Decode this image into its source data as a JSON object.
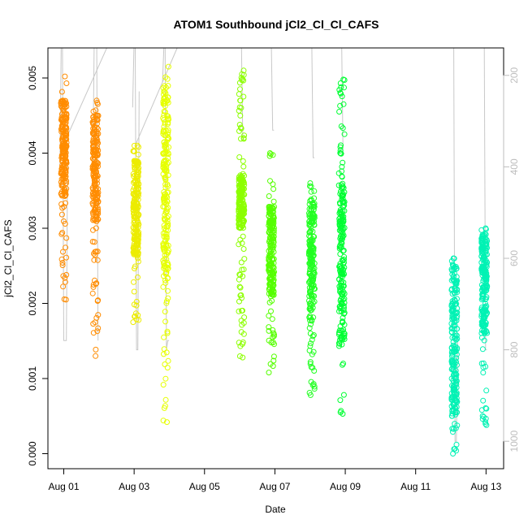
{
  "chart_data": {
    "type": "scatter",
    "title": "ATOM1 Southbound jCl2_Cl_Cl_CAFS",
    "xlabel": "Date",
    "ylabel": "jCl2_Cl_Cl_CAFS",
    "x_ticks": [
      "Aug 01",
      "Aug 03",
      "Aug 05",
      "Aug 07",
      "Aug 09",
      "Aug 11",
      "Aug 13"
    ],
    "x_tick_days": [
      1,
      3,
      5,
      7,
      9,
      11,
      13
    ],
    "xlim_days": [
      0.55,
      13.5
    ],
    "ylim": [
      -0.0002,
      0.0054
    ],
    "y_ticks": [
      "0.000",
      "0.001",
      "0.002",
      "0.003",
      "0.004",
      "0.005"
    ],
    "y_tick_values": [
      0,
      0.001,
      0.002,
      0.003,
      0.004,
      0.005
    ],
    "right_axis_ticks": [
      "200",
      "400",
      "600",
      "800",
      "1000"
    ],
    "right_axis_values": [
      200,
      400,
      600,
      800,
      1000
    ],
    "right_axis_lim": [
      1060,
      140
    ],
    "right_axis_color": "#bdbdbd",
    "grid": false,
    "marker": "open-circle",
    "series": [
      {
        "day": 1.0,
        "color": "#ff8c00",
        "ymin": 0.00205,
        "ymax": 0.00502,
        "core_min": 0.0034,
        "core_max": 0.0047
      },
      {
        "day": 1.9,
        "color": "#ff8c00",
        "ymin": 0.0013,
        "ymax": 0.0047,
        "core_min": 0.0031,
        "core_max": 0.0045
      },
      {
        "day": 3.05,
        "color": "#ecec00",
        "ymin": 0.00175,
        "ymax": 0.0041,
        "core_min": 0.0026,
        "core_max": 0.0039
      },
      {
        "day": 3.9,
        "color": "#e6ff00",
        "ymin": 0.00042,
        "ymax": 0.00515,
        "core_min": 0.0023,
        "core_max": 0.0049
      },
      {
        "day": 6.05,
        "color": "#8cff00",
        "ymin": 0.00128,
        "ymax": 0.0051,
        "core_min": 0.003,
        "core_max": 0.0037
      },
      {
        "day": 6.9,
        "color": "#55ff00",
        "ymin": 0.00108,
        "ymax": 0.004,
        "core_min": 0.0021,
        "core_max": 0.0033
      },
      {
        "day": 8.05,
        "color": "#22ff22",
        "ymin": 0.00078,
        "ymax": 0.0036,
        "core_min": 0.0019,
        "core_max": 0.0034
      },
      {
        "day": 8.9,
        "color": "#00ff33",
        "ymin": 0.00053,
        "ymax": 0.00498,
        "core_min": 0.0015,
        "core_max": 0.0036
      },
      {
        "day": 12.1,
        "color": "#00f2b4",
        "ymin": 0.0,
        "ymax": 0.0026,
        "core_min": 0.0005,
        "core_max": 0.0025
      },
      {
        "day": 12.95,
        "color": "#00f2b4",
        "ymin": 0.00038,
        "ymax": 0.003,
        "core_min": 0.0016,
        "core_max": 0.0029
      }
    ],
    "altitude_trace": [
      {
        "day": 1.0,
        "values": [
          410,
          140,
          140,
          780,
          780,
          780,
          355
        ]
      },
      {
        "day": 1.9,
        "values": [
          410,
          140,
          140,
          140,
          780
        ]
      },
      {
        "day": 3.05,
        "values": [
          270,
          140,
          140,
          800,
          800,
          235
        ]
      },
      {
        "day": 3.9,
        "values": [
          215,
          140,
          140,
          800,
          780,
          780
        ]
      },
      {
        "day": 6.05,
        "values": [
          140,
          140,
          140,
          340,
          340
        ]
      },
      {
        "day": 6.9,
        "values": [
          140,
          140,
          140,
          320,
          320
        ]
      },
      {
        "day": 8.05,
        "values": [
          140,
          140,
          140,
          380,
          380
        ]
      },
      {
        "day": 8.9,
        "values": [
          140,
          140,
          140,
          370,
          370
        ]
      },
      {
        "day": 12.1,
        "values": [
          140,
          140,
          140,
          1000,
          1000,
          770
        ]
      },
      {
        "day": 12.95,
        "values": [
          140,
          140,
          140,
          800,
          800
        ]
      }
    ]
  }
}
